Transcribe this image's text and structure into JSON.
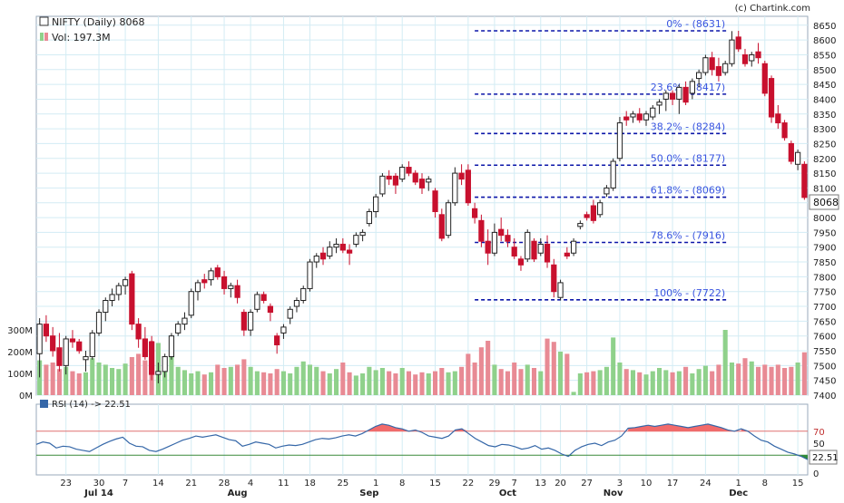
{
  "header": {
    "ticker_label": "NIFTY (Daily) 8068",
    "vol_label": "Vol: 197.3M",
    "copyright": "(c) Chartink.com"
  },
  "rsi_panel": {
    "label": "RSI (14) -> 22.51",
    "overbought": 70,
    "oversold": 30,
    "current_value_label": "22.51",
    "ticks": [
      "70",
      "50",
      "0"
    ]
  },
  "colors": {
    "up": "#ffffff",
    "down": "#c8102e",
    "up_volume": "#8fd18b",
    "down_volume": "#e88a94",
    "fib_line": "#0a14a8",
    "fib_text": "#3a55e0",
    "grid": "#d3ecf4",
    "rsi_line": "#3567a8",
    "rsi_overbought_fill": "#f26a6a",
    "rsi_oversold_fill": "#2e8b3a"
  },
  "chart_data": {
    "type": "candlestick",
    "price_axis": {
      "ylim": [
        7400,
        8680
      ],
      "ticks": [
        7400,
        7450,
        7500,
        7550,
        7600,
        7650,
        7700,
        7750,
        7800,
        7850,
        7900,
        7950,
        8000,
        8050,
        8100,
        8150,
        8200,
        8250,
        8300,
        8350,
        8400,
        8450,
        8500,
        8550,
        8600,
        8650
      ],
      "last_price_label": "8068"
    },
    "volume_axis": {
      "ticks": [
        "0M",
        "100M",
        "200M",
        "300M"
      ],
      "max": 350
    },
    "x_axis": {
      "day_labels": [
        {
          "i": 4,
          "label": "23"
        },
        {
          "i": 9,
          "label": "30"
        },
        {
          "i": 13,
          "label": "7"
        },
        {
          "i": 18,
          "label": "14"
        },
        {
          "i": 23,
          "label": "21"
        },
        {
          "i": 28,
          "label": "28"
        },
        {
          "i": 32,
          "label": "4"
        },
        {
          "i": 37,
          "label": "11"
        },
        {
          "i": 41,
          "label": "18"
        },
        {
          "i": 46,
          "label": "25"
        },
        {
          "i": 51,
          "label": "1"
        },
        {
          "i": 55,
          "label": "8"
        },
        {
          "i": 60,
          "label": "15"
        },
        {
          "i": 65,
          "label": "22"
        },
        {
          "i": 69,
          "label": "29"
        },
        {
          "i": 72,
          "label": "7"
        },
        {
          "i": 76,
          "label": "13"
        },
        {
          "i": 79,
          "label": "20"
        },
        {
          "i": 83,
          "label": "27"
        },
        {
          "i": 88,
          "label": "3"
        },
        {
          "i": 92,
          "label": "10"
        },
        {
          "i": 96,
          "label": "17"
        },
        {
          "i": 101,
          "label": "24"
        },
        {
          "i": 106,
          "label": "1"
        },
        {
          "i": 110,
          "label": "8"
        },
        {
          "i": 115,
          "label": "15"
        }
      ],
      "month_labels": [
        {
          "i": 9,
          "label": "Jul 14"
        },
        {
          "i": 30,
          "label": "Aug"
        },
        {
          "i": 50,
          "label": "Sep"
        },
        {
          "i": 71,
          "label": "Oct"
        },
        {
          "i": 87,
          "label": "Nov"
        },
        {
          "i": 106,
          "label": "Dec"
        }
      ]
    },
    "fibonacci": [
      {
        "label": "0% - (8631)",
        "value": 8631
      },
      {
        "label": "23.6% - (8417)",
        "value": 8417
      },
      {
        "label": "38.2% - (8284)",
        "value": 8284
      },
      {
        "label": "50.0% - (8177)",
        "value": 8177
      },
      {
        "label": "61.8% - (8069)",
        "value": 8069
      },
      {
        "label": "78.6% - (7916)",
        "value": 7916
      },
      {
        "label": "100% - (7722)",
        "value": 7722
      }
    ],
    "candles": [
      {
        "o": 7540,
        "h": 7660,
        "l": 7460,
        "c": 7640,
        "v": 160
      },
      {
        "o": 7640,
        "h": 7670,
        "l": 7580,
        "c": 7600,
        "v": 140
      },
      {
        "o": 7600,
        "h": 7630,
        "l": 7530,
        "c": 7550,
        "v": 150
      },
      {
        "o": 7560,
        "h": 7610,
        "l": 7480,
        "c": 7500,
        "v": 120
      },
      {
        "o": 7500,
        "h": 7600,
        "l": 7470,
        "c": 7590,
        "v": 130
      },
      {
        "o": 7590,
        "h": 7620,
        "l": 7560,
        "c": 7580,
        "v": 110
      },
      {
        "o": 7580,
        "h": 7590,
        "l": 7540,
        "c": 7550,
        "v": 100
      },
      {
        "o": 7520,
        "h": 7550,
        "l": 7480,
        "c": 7530,
        "v": 105
      },
      {
        "o": 7530,
        "h": 7620,
        "l": 7520,
        "c": 7610,
        "v": 170
      },
      {
        "o": 7610,
        "h": 7690,
        "l": 7600,
        "c": 7680,
        "v": 150
      },
      {
        "o": 7680,
        "h": 7730,
        "l": 7650,
        "c": 7720,
        "v": 140
      },
      {
        "o": 7720,
        "h": 7760,
        "l": 7700,
        "c": 7740,
        "v": 125
      },
      {
        "o": 7740,
        "h": 7780,
        "l": 7720,
        "c": 7770,
        "v": 120
      },
      {
        "o": 7770,
        "h": 7800,
        "l": 7740,
        "c": 7790,
        "v": 145
      },
      {
        "o": 7810,
        "h": 7820,
        "l": 7620,
        "c": 7640,
        "v": 175
      },
      {
        "o": 7640,
        "h": 7660,
        "l": 7560,
        "c": 7590,
        "v": 190
      },
      {
        "o": 7590,
        "h": 7630,
        "l": 7520,
        "c": 7530,
        "v": 160
      },
      {
        "o": 7580,
        "h": 7600,
        "l": 7450,
        "c": 7470,
        "v": 250
      },
      {
        "o": 7470,
        "h": 7510,
        "l": 7440,
        "c": 7480,
        "v": 240
      },
      {
        "o": 7480,
        "h": 7540,
        "l": 7460,
        "c": 7530,
        "v": 160
      },
      {
        "o": 7530,
        "h": 7610,
        "l": 7520,
        "c": 7600,
        "v": 180
      },
      {
        "o": 7610,
        "h": 7650,
        "l": 7600,
        "c": 7640,
        "v": 130
      },
      {
        "o": 7640,
        "h": 7680,
        "l": 7620,
        "c": 7660,
        "v": 115
      },
      {
        "o": 7670,
        "h": 7760,
        "l": 7660,
        "c": 7750,
        "v": 100
      },
      {
        "o": 7750,
        "h": 7790,
        "l": 7720,
        "c": 7780,
        "v": 110
      },
      {
        "o": 7790,
        "h": 7810,
        "l": 7760,
        "c": 7780,
        "v": 95
      },
      {
        "o": 7790,
        "h": 7830,
        "l": 7770,
        "c": 7820,
        "v": 105
      },
      {
        "o": 7830,
        "h": 7840,
        "l": 7790,
        "c": 7800,
        "v": 140
      },
      {
        "o": 7800,
        "h": 7820,
        "l": 7740,
        "c": 7760,
        "v": 125
      },
      {
        "o": 7760,
        "h": 7780,
        "l": 7730,
        "c": 7770,
        "v": 130
      },
      {
        "o": 7770,
        "h": 7790,
        "l": 7710,
        "c": 7730,
        "v": 140
      },
      {
        "o": 7680,
        "h": 7690,
        "l": 7600,
        "c": 7620,
        "v": 165
      },
      {
        "o": 7620,
        "h": 7690,
        "l": 7600,
        "c": 7680,
        "v": 130
      },
      {
        "o": 7690,
        "h": 7750,
        "l": 7680,
        "c": 7740,
        "v": 110
      },
      {
        "o": 7740,
        "h": 7750,
        "l": 7710,
        "c": 7720,
        "v": 105
      },
      {
        "o": 7700,
        "h": 7710,
        "l": 7650,
        "c": 7680,
        "v": 100
      },
      {
        "o": 7600,
        "h": 7610,
        "l": 7540,
        "c": 7570,
        "v": 120
      },
      {
        "o": 7610,
        "h": 7640,
        "l": 7590,
        "c": 7630,
        "v": 110
      },
      {
        "o": 7660,
        "h": 7700,
        "l": 7640,
        "c": 7690,
        "v": 100
      },
      {
        "o": 7700,
        "h": 7730,
        "l": 7680,
        "c": 7720,
        "v": 130
      },
      {
        "o": 7720,
        "h": 7770,
        "l": 7710,
        "c": 7760,
        "v": 155
      },
      {
        "o": 7760,
        "h": 7860,
        "l": 7750,
        "c": 7850,
        "v": 140
      },
      {
        "o": 7850,
        "h": 7880,
        "l": 7830,
        "c": 7870,
        "v": 130
      },
      {
        "o": 7880,
        "h": 7900,
        "l": 7840,
        "c": 7860,
        "v": 110
      },
      {
        "o": 7870,
        "h": 7920,
        "l": 7860,
        "c": 7900,
        "v": 100
      },
      {
        "o": 7900,
        "h": 7930,
        "l": 7880,
        "c": 7910,
        "v": 120
      },
      {
        "o": 7910,
        "h": 7930,
        "l": 7880,
        "c": 7890,
        "v": 150
      },
      {
        "o": 7890,
        "h": 7910,
        "l": 7840,
        "c": 7880,
        "v": 105
      },
      {
        "o": 7910,
        "h": 7950,
        "l": 7900,
        "c": 7940,
        "v": 90
      },
      {
        "o": 7940,
        "h": 7960,
        "l": 7920,
        "c": 7950,
        "v": 100
      },
      {
        "o": 7980,
        "h": 8030,
        "l": 7970,
        "c": 8020,
        "v": 130
      },
      {
        "o": 8020,
        "h": 8080,
        "l": 8000,
        "c": 8070,
        "v": 115
      },
      {
        "o": 8080,
        "h": 8150,
        "l": 8070,
        "c": 8140,
        "v": 125
      },
      {
        "o": 8140,
        "h": 8160,
        "l": 8110,
        "c": 8130,
        "v": 110
      },
      {
        "o": 8140,
        "h": 8150,
        "l": 8080,
        "c": 8110,
        "v": 100
      },
      {
        "o": 8130,
        "h": 8180,
        "l": 8120,
        "c": 8170,
        "v": 125
      },
      {
        "o": 8170,
        "h": 8190,
        "l": 8140,
        "c": 8150,
        "v": 110
      },
      {
        "o": 8150,
        "h": 8160,
        "l": 8110,
        "c": 8120,
        "v": 95
      },
      {
        "o": 8130,
        "h": 8150,
        "l": 8080,
        "c": 8100,
        "v": 105
      },
      {
        "o": 8120,
        "h": 8140,
        "l": 8090,
        "c": 8130,
        "v": 100
      },
      {
        "o": 8090,
        "h": 8100,
        "l": 8000,
        "c": 8020,
        "v": 110
      },
      {
        "o": 8010,
        "h": 8030,
        "l": 7920,
        "c": 7930,
        "v": 125
      },
      {
        "o": 7940,
        "h": 8060,
        "l": 7930,
        "c": 8050,
        "v": 105
      },
      {
        "o": 8050,
        "h": 8170,
        "l": 8040,
        "c": 8150,
        "v": 110
      },
      {
        "o": 8150,
        "h": 8180,
        "l": 8110,
        "c": 8130,
        "v": 130
      },
      {
        "o": 8160,
        "h": 8180,
        "l": 8040,
        "c": 8050,
        "v": 190
      },
      {
        "o": 8030,
        "h": 8050,
        "l": 7980,
        "c": 8000,
        "v": 150
      },
      {
        "o": 7990,
        "h": 8010,
        "l": 7900,
        "c": 7920,
        "v": 220
      },
      {
        "o": 7920,
        "h": 7960,
        "l": 7840,
        "c": 7880,
        "v": 250
      },
      {
        "o": 7880,
        "h": 7980,
        "l": 7870,
        "c": 7950,
        "v": 140
      },
      {
        "o": 7960,
        "h": 8000,
        "l": 7920,
        "c": 7940,
        "v": 120
      },
      {
        "o": 7940,
        "h": 7960,
        "l": 7900,
        "c": 7920,
        "v": 110
      },
      {
        "o": 7900,
        "h": 7930,
        "l": 7860,
        "c": 7870,
        "v": 150
      },
      {
        "o": 7860,
        "h": 7870,
        "l": 7820,
        "c": 7840,
        "v": 120
      },
      {
        "o": 7860,
        "h": 7960,
        "l": 7850,
        "c": 7950,
        "v": 140
      },
      {
        "o": 7920,
        "h": 7930,
        "l": 7850,
        "c": 7860,
        "v": 125
      },
      {
        "o": 7880,
        "h": 7930,
        "l": 7870,
        "c": 7910,
        "v": 110
      },
      {
        "o": 7910,
        "h": 7940,
        "l": 7830,
        "c": 7850,
        "v": 260
      },
      {
        "o": 7840,
        "h": 7860,
        "l": 7730,
        "c": 7750,
        "v": 245
      },
      {
        "o": 7730,
        "h": 7790,
        "l": 7720,
        "c": 7780,
        "v": 200
      },
      {
        "o": 7880,
        "h": 7900,
        "l": 7860,
        "c": 7870,
        "v": 190
      },
      {
        "o": 7880,
        "h": 7930,
        "l": 7870,
        "c": 7920,
        "v": 15
      },
      {
        "o": 7970,
        "h": 7990,
        "l": 7960,
        "c": 7980,
        "v": 100
      },
      {
        "o": 8010,
        "h": 8020,
        "l": 7990,
        "c": 8000,
        "v": 105
      },
      {
        "o": 8040,
        "h": 8060,
        "l": 7980,
        "c": 7990,
        "v": 110
      },
      {
        "o": 8010,
        "h": 8060,
        "l": 8000,
        "c": 8050,
        "v": 115
      },
      {
        "o": 8080,
        "h": 8110,
        "l": 8070,
        "c": 8100,
        "v": 130
      },
      {
        "o": 8100,
        "h": 8200,
        "l": 8090,
        "c": 8190,
        "v": 265
      },
      {
        "o": 8200,
        "h": 8340,
        "l": 8190,
        "c": 8320,
        "v": 150
      },
      {
        "o": 8340,
        "h": 8360,
        "l": 8310,
        "c": 8330,
        "v": 120
      },
      {
        "o": 8340,
        "h": 8360,
        "l": 8320,
        "c": 8350,
        "v": 115
      },
      {
        "o": 8350,
        "h": 8370,
        "l": 8320,
        "c": 8330,
        "v": 105
      },
      {
        "o": 8330,
        "h": 8360,
        "l": 8310,
        "c": 8350,
        "v": 95
      },
      {
        "o": 8340,
        "h": 8380,
        "l": 8330,
        "c": 8370,
        "v": 110
      },
      {
        "o": 8380,
        "h": 8400,
        "l": 8350,
        "c": 8390,
        "v": 125
      },
      {
        "o": 8400,
        "h": 8430,
        "l": 8360,
        "c": 8420,
        "v": 115
      },
      {
        "o": 8420,
        "h": 8430,
        "l": 8380,
        "c": 8400,
        "v": 105
      },
      {
        "o": 8400,
        "h": 8450,
        "l": 8350,
        "c": 8440,
        "v": 110
      },
      {
        "o": 8440,
        "h": 8460,
        "l": 8380,
        "c": 8390,
        "v": 130
      },
      {
        "o": 8420,
        "h": 8470,
        "l": 8400,
        "c": 8460,
        "v": 100
      },
      {
        "o": 8470,
        "h": 8500,
        "l": 8440,
        "c": 8490,
        "v": 120
      },
      {
        "o": 8490,
        "h": 8550,
        "l": 8480,
        "c": 8540,
        "v": 135
      },
      {
        "o": 8540,
        "h": 8560,
        "l": 8480,
        "c": 8500,
        "v": 110
      },
      {
        "o": 8510,
        "h": 8540,
        "l": 8460,
        "c": 8480,
        "v": 140
      },
      {
        "o": 8490,
        "h": 8530,
        "l": 8480,
        "c": 8520,
        "v": 300
      },
      {
        "o": 8520,
        "h": 8630,
        "l": 8510,
        "c": 8600,
        "v": 150
      },
      {
        "o": 8610,
        "h": 8631,
        "l": 8560,
        "c": 8570,
        "v": 145
      },
      {
        "o": 8550,
        "h": 8570,
        "l": 8510,
        "c": 8520,
        "v": 170
      },
      {
        "o": 8530,
        "h": 8560,
        "l": 8510,
        "c": 8550,
        "v": 155
      },
      {
        "o": 8560,
        "h": 8590,
        "l": 8520,
        "c": 8540,
        "v": 130
      },
      {
        "o": 8520,
        "h": 8530,
        "l": 8410,
        "c": 8420,
        "v": 140
      },
      {
        "o": 8470,
        "h": 8480,
        "l": 8320,
        "c": 8340,
        "v": 130
      },
      {
        "o": 8350,
        "h": 8380,
        "l": 8300,
        "c": 8320,
        "v": 140
      },
      {
        "o": 8320,
        "h": 8330,
        "l": 8260,
        "c": 8270,
        "v": 125
      },
      {
        "o": 8250,
        "h": 8260,
        "l": 8180,
        "c": 8190,
        "v": 130
      },
      {
        "o": 8180,
        "h": 8230,
        "l": 8160,
        "c": 8220,
        "v": 150
      },
      {
        "o": 8180,
        "h": 8190,
        "l": 8060,
        "c": 8068,
        "v": 197
      }
    ],
    "rsi": [
      48,
      52,
      50,
      42,
      45,
      44,
      40,
      38,
      36,
      42,
      48,
      53,
      57,
      60,
      50,
      45,
      44,
      38,
      36,
      40,
      45,
      50,
      55,
      58,
      62,
      60,
      62,
      64,
      60,
      56,
      54,
      45,
      48,
      52,
      50,
      48,
      42,
      45,
      47,
      46,
      48,
      52,
      56,
      58,
      57,
      59,
      62,
      64,
      62,
      66,
      72,
      78,
      82,
      80,
      76,
      74,
      70,
      72,
      68,
      62,
      60,
      58,
      62,
      72,
      74,
      66,
      58,
      52,
      46,
      44,
      48,
      47,
      44,
      40,
      42,
      46,
      40,
      42,
      38,
      32,
      28,
      38,
      44,
      48,
      50,
      46,
      52,
      55,
      62,
      75,
      76,
      78,
      80,
      78,
      80,
      82,
      80,
      78,
      76,
      78,
      80,
      82,
      79,
      76,
      72,
      70,
      74,
      70,
      62,
      55,
      52,
      45,
      40,
      35,
      32,
      28,
      22.51
    ]
  }
}
